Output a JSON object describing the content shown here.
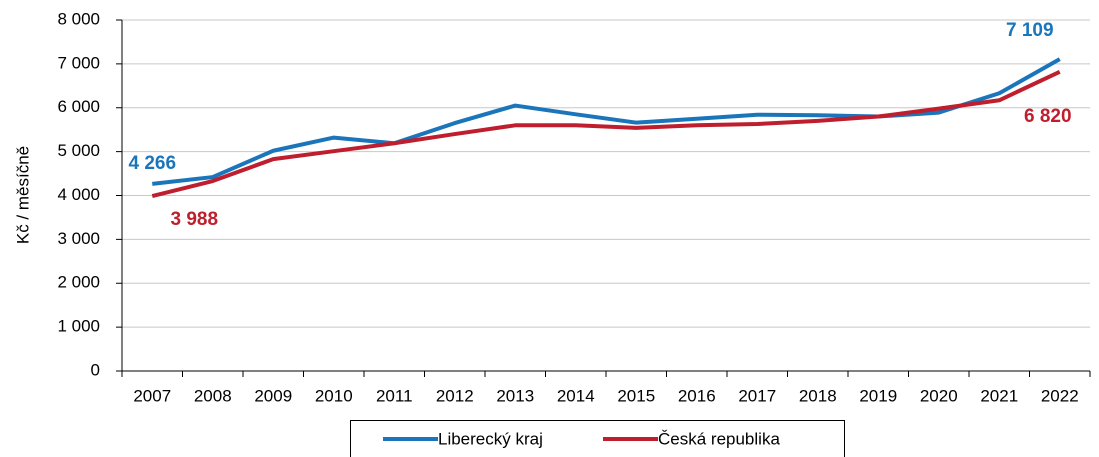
{
  "chart_data": {
    "type": "line",
    "y_label": "Kč / měsíčně",
    "categories": [
      "2007",
      "2008",
      "2009",
      "2010",
      "2011",
      "2012",
      "2013",
      "2014",
      "2015",
      "2016",
      "2017",
      "2018",
      "2019",
      "2020",
      "2021",
      "2022"
    ],
    "series": [
      {
        "name": "Liberecký kraj",
        "color": "#1b75bb",
        "values": [
          4266,
          4420,
          5020,
          5320,
          5190,
          5650,
          6050,
          5850,
          5660,
          5750,
          5840,
          5830,
          5800,
          5890,
          6330,
          7109
        ],
        "value_labels": [
          "4 266",
          null,
          null,
          null,
          null,
          null,
          null,
          null,
          null,
          null,
          null,
          null,
          null,
          null,
          null,
          "7 109"
        ]
      },
      {
        "name": "Česká republika",
        "color": "#be1e2d",
        "values": [
          3988,
          4330,
          4830,
          5010,
          5190,
          5400,
          5600,
          5600,
          5540,
          5600,
          5630,
          5700,
          5800,
          5980,
          6170,
          6820
        ],
        "value_labels": [
          "3 988",
          null,
          null,
          null,
          null,
          null,
          null,
          null,
          null,
          null,
          null,
          null,
          null,
          null,
          null,
          "6 820"
        ]
      }
    ],
    "ylim": [
      0,
      8000
    ],
    "yticks": [
      0,
      {
        "value": 1000,
        "label": "1 000"
      },
      {
        "value": 2000,
        "label": "2 000"
      },
      {
        "value": 3000,
        "label": "3 000"
      },
      {
        "value": 4000,
        "label": "4 000"
      },
      {
        "value": 5000,
        "label": "5 000"
      },
      {
        "value": 6000,
        "label": "6 000"
      },
      {
        "value": 7000,
        "label": "7 000"
      },
      {
        "value": 8000,
        "label": "8 000"
      }
    ],
    "grid": true,
    "legend": "bottom"
  }
}
